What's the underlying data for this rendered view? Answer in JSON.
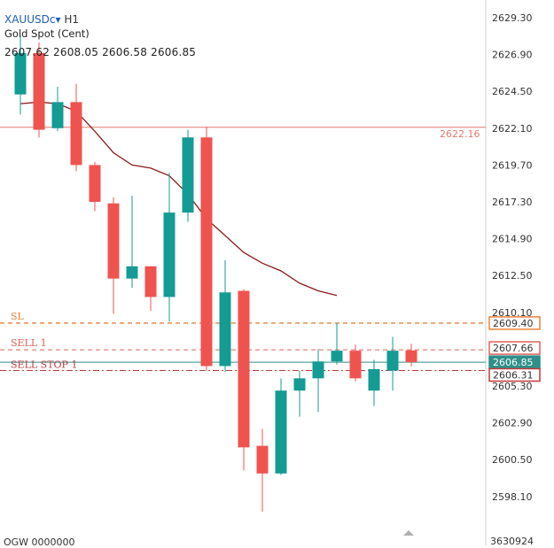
{
  "header": {
    "symbol": "XAUUSDc",
    "symbol_arrow": "▾",
    "timeframe": "H1",
    "description": "Gold Spot (Cent)",
    "ohlc": "2607.62 2608.05 2606.58 2606.85"
  },
  "footer": {
    "left_text": "OGW 0000000",
    "right_text": "3630924"
  },
  "colors": {
    "bull": "#139b94",
    "bear": "#ef5350",
    "ma": "#8b1a1a",
    "sl_line": "#e8823a",
    "sell_line": "#e0605a",
    "stop_line": "#c0393b",
    "current_line": "#2f8f8a",
    "hline": "#e07a70"
  },
  "chart_data": {
    "type": "candlestick",
    "y_axis": {
      "min": 2596.9,
      "max": 2630.5,
      "ticks": [
        "2629.30",
        "2626.90",
        "2624.50",
        "2622.10",
        "2619.70",
        "2617.30",
        "2614.90",
        "2612.50",
        "2610.10",
        "2605.30",
        "2602.90",
        "2600.50",
        "2598.10"
      ]
    },
    "candles": [
      {
        "o": 2624.3,
        "h": 2628.1,
        "l": 2623.0,
        "c": 2627.0
      },
      {
        "o": 2627.0,
        "h": 2627.7,
        "l": 2621.5,
        "c": 2622.0
      },
      {
        "o": 2622.1,
        "h": 2624.8,
        "l": 2621.9,
        "c": 2623.8
      },
      {
        "o": 2623.8,
        "h": 2625.0,
        "l": 2619.3,
        "c": 2619.7
      },
      {
        "o": 2619.7,
        "h": 2619.9,
        "l": 2616.7,
        "c": 2617.3
      },
      {
        "o": 2617.2,
        "h": 2617.6,
        "l": 2610.0,
        "c": 2612.3
      },
      {
        "o": 2612.3,
        "h": 2617.7,
        "l": 2611.7,
        "c": 2613.1
      },
      {
        "o": 2613.1,
        "h": 2613.1,
        "l": 2610.2,
        "c": 2611.1
      },
      {
        "o": 2611.1,
        "h": 2619.2,
        "l": 2609.5,
        "c": 2616.6
      },
      {
        "o": 2616.6,
        "h": 2622.0,
        "l": 2616.0,
        "c": 2621.5
      },
      {
        "o": 2621.5,
        "h": 2622.2,
        "l": 2606.3,
        "c": 2606.6
      },
      {
        "o": 2606.6,
        "h": 2613.5,
        "l": 2606.2,
        "c": 2611.4
      },
      {
        "o": 2611.5,
        "h": 2611.6,
        "l": 2599.8,
        "c": 2601.3
      },
      {
        "o": 2601.4,
        "h": 2602.5,
        "l": 2597.1,
        "c": 2599.6
      },
      {
        "o": 2599.6,
        "h": 2605.8,
        "l": 2599.5,
        "c": 2605.0
      },
      {
        "o": 2605.0,
        "h": 2606.3,
        "l": 2603.3,
        "c": 2605.8
      },
      {
        "o": 2605.8,
        "h": 2607.7,
        "l": 2603.6,
        "c": 2606.9
      },
      {
        "o": 2606.9,
        "h": 2609.4,
        "l": 2606.7,
        "c": 2607.6
      },
      {
        "o": 2607.6,
        "h": 2608.0,
        "l": 2605.6,
        "c": 2605.8
      },
      {
        "o": 2605.0,
        "h": 2607.0,
        "l": 2604.0,
        "c": 2606.4
      },
      {
        "o": 2606.3,
        "h": 2608.5,
        "l": 2605.0,
        "c": 2607.6
      },
      {
        "o": 2607.62,
        "h": 2608.05,
        "l": 2606.58,
        "c": 2606.85
      }
    ],
    "moving_average": [
      2623.7,
      2623.8,
      2623.7,
      2623.2,
      2621.9,
      2620.5,
      2619.7,
      2619.5,
      2619.0,
      2617.8,
      2616.2,
      2615.1,
      2614.0,
      2613.3,
      2612.8,
      2612.0,
      2611.5,
      2611.2
    ],
    "lines": [
      {
        "id": "hline",
        "price": 2622.16,
        "label": "",
        "tag": "2622.16",
        "style": "solid"
      },
      {
        "id": "sl",
        "price": 2609.4,
        "label": "SL",
        "tag": "2609.40",
        "style": "dashed"
      },
      {
        "id": "sell",
        "price": 2607.66,
        "label": "SELL 1",
        "tag": "2607.66",
        "style": "dashed"
      },
      {
        "id": "current",
        "price": 2606.85,
        "label": "",
        "tag": "2606.85",
        "style": "solid"
      },
      {
        "id": "sellstop",
        "price": 2606.31,
        "label": "SELL STOP 1",
        "tag": "2606.31",
        "style": "dashdot"
      }
    ]
  }
}
